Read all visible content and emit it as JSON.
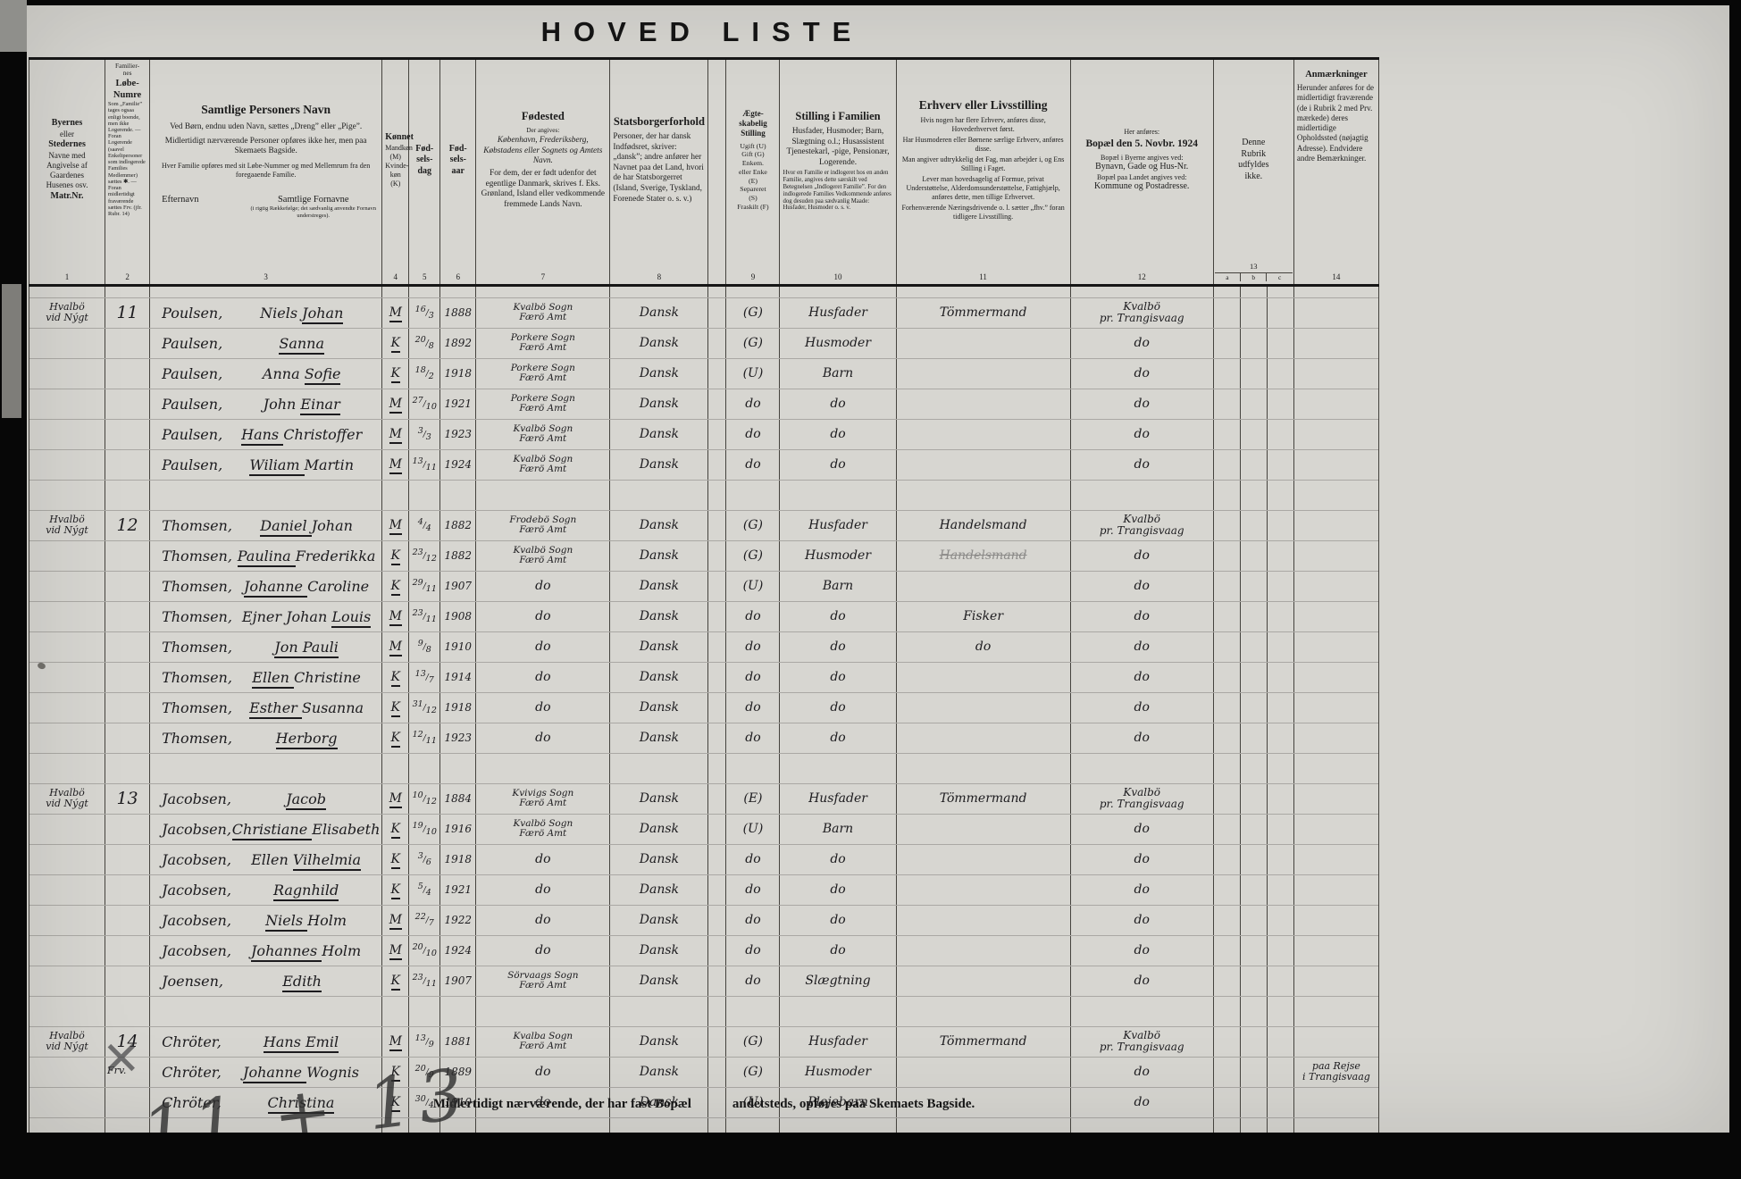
{
  "title": "HOVED  LISTE",
  "footer": {
    "left": "Midlertidigt nærværende, der har fast Bopæl",
    "right": "andetsteds, opføres paa Skemaets Bagside."
  },
  "pencil_note": "11 + 13",
  "table": {
    "headers": {
      "place": {
        "l1": "Byernes",
        "l2": "eller",
        "l3": "Stedernes",
        "l4": "Navne med\nAngivelse af\nGaardenes\nHusenes osv.",
        "l5": "Matr.Nr."
      },
      "family_no": {
        "top": "Familier-\nnes",
        "title": "Løbe-\nNumre",
        "small": "Som „Familie” tages ogsaa enligt boende, men ikke Logerende. — Foran Logerende (saavel Enkeltpersoner som indlogerede Families Medlemmer) sættes ✱. — Foran midlertidigt fraværende sættes Frv. (jfr. Rubr. 14)"
      },
      "names": {
        "title": "Samtlige Personers Navn",
        "p1": "Ved Børn, endnu uden Navn, sættes „Dreng” eller „Pige”.",
        "p2": "Midlertidigt nærværende Personer opføres ikke her, men paa Skemaets Bagside.",
        "p3": "Hver Familie opføres med sit Løbe-Nummer og med Mellemrum fra den foregaaende Familie.",
        "sub_left": "Efternavn",
        "sub_right": "Samtlige Fornavne",
        "sub_right_small": "(i rigtig Rækkefølge; det sædvanlig anvendte Fornavn understreges)."
      },
      "sex": {
        "title": "Kønnet",
        "lines": "Mandkøn\n(M)\nKvinde-\nkøn\n(K)"
      },
      "birth_day": "Fød-\nsels-\ndag",
      "birth_year": "Fød-\nsels-\naar",
      "birthplace": {
        "title": "Fødested",
        "small": "Der angives:",
        "p1": "København, Frederiksberg, Købstadens eller Sognets og Amtets Navn.",
        "p2": "For dem, der er født udenfor det egentlige Danmark, skrives f. Eks. Grønland, Island eller vedkommende fremmede Lands Navn."
      },
      "citizenship": {
        "title": "Statsborgerforhold",
        "p1": "Personer, der har dansk Indfødsret, skriver: „dansk”; andre anfører her Navnet paa det Land, hvori de har Statsborgerret (Island, Sverige, Tyskland, Forenede Stater o. s. v.)"
      },
      "marital": {
        "title": "Ægte-\nskabelig\nStilling",
        "lines": "Ugift (U)\nGift (G)\nEnkem.\neller Enke\n(E)\nSepareret\n(S)\nFraskilt (F)"
      },
      "family_position": {
        "title": "Stilling i Familien",
        "p1": "Husfader, Husmoder; Barn, Slægtning o.l.; Husassistent Tjenestekarl, -pige, Pensionær, Logerende.",
        "small": "Hvor en Familie er indlogeret hos en anden Familie, angives dette særskilt ved Betegnelsen „Indlogeret Familie”. For den indlogerede Families Vedkommende anføres dog desuden paa sædvanlig Maade: Husfader, Husmoder o. s. v."
      },
      "occupation": {
        "title": "Erhverv eller Livsstilling",
        "p": [
          "Hvis nogen har flere Erhverv, anføres disse, Hovederhvervet først.",
          "Har Husmoderen eller Børnene særlige Erhverv, anføres disse.",
          "Man angiver udtrykkelig det Fag, man arbejder i, og Ens Stilling i Faget.",
          "Lever man hovedsagelig af Formue, privat Understøttelse, Alderdomsunderstøttelse, Fattighjælp, anføres dette, men tillige Erhvervet.",
          "Forhenværende Næringsdrivende o. l. sætter „fhv.” foran tidligere Livsstilling."
        ]
      },
      "residence": {
        "small_top": "Her anføres:",
        "title": "Bopæl den 5. Novbr. 1924",
        "p1": "Bopæl i Byerne angives ved:",
        "p1b": "Bynavn, Gade og Hus-Nr.",
        "p2": "Bopæl paa Landet angives ved:",
        "p2b": "Kommune og Postadresse."
      },
      "unused": "Denne\nRubrik\nudfyldes\nikke.",
      "remarks": {
        "title": "Anmærkninger",
        "p1": "Herunder anføres for de midlertidigt fraværende (de i Rubrik 2 med Prv. mærkede) deres midlertidige Opholdssted (nøjagtig Adresse). Endvidere andre Bemærkninger."
      },
      "numbers": [
        "1",
        "2",
        "3",
        "4",
        "5",
        "6",
        "7",
        "8",
        "9",
        "10",
        "11",
        "12",
        "13",
        "14"
      ],
      "sub_abc": [
        "a",
        "b",
        "c"
      ]
    },
    "families": [
      {
        "location": [
          "Hvalbö",
          "vid Nýgt"
        ],
        "number": "11",
        "members": [
          {
            "surname": "Poulsen,",
            "given": [
              {
                "t": "Niels ",
                "u": false
              },
              {
                "t": "Johan",
                "u": true
              }
            ],
            "sex": "M",
            "day": "16/3",
            "year": "1888",
            "birthplace": [
              "Kvalbö Sogn",
              "Færö Amt"
            ],
            "citizenship": "Dansk",
            "marital": "(G)",
            "position": "Husfader",
            "occupation": "Tömmermand",
            "residence": [
              "Kvalbö",
              "pr. Trangisvaag"
            ],
            "remark": []
          },
          {
            "surname": "Paulsen,",
            "given": [
              {
                "t": "Sanna",
                "u": true
              }
            ],
            "sex": "K",
            "day": "20/8",
            "year": "1892",
            "birthplace": [
              "Porkere Sogn",
              "Færö Amt"
            ],
            "citizenship": "Dansk",
            "marital": "(G)",
            "position": "Husmoder",
            "occupation": "",
            "residence": [
              "do"
            ],
            "remark": []
          },
          {
            "surname": "Paulsen,",
            "given": [
              {
                "t": "Anna ",
                "u": false
              },
              {
                "t": "Sofie",
                "u": true
              }
            ],
            "sex": "K",
            "day": "18/2",
            "year": "1918",
            "birthplace": [
              "Porkere Sogn",
              "Færö Amt"
            ],
            "citizenship": "Dansk",
            "marital": "(U)",
            "position": "Barn",
            "occupation": "",
            "residence": [
              "do"
            ],
            "remark": []
          },
          {
            "surname": "Paulsen,",
            "given": [
              {
                "t": "John ",
                "u": false
              },
              {
                "t": "Einar",
                "u": true
              }
            ],
            "sex": "M",
            "day": "27/10",
            "year": "1921",
            "birthplace": [
              "Porkere Sogn",
              "Færö Amt"
            ],
            "citizenship": "Dansk",
            "marital": "do",
            "position": "do",
            "occupation": "",
            "residence": [
              "do"
            ],
            "remark": []
          },
          {
            "surname": "Paulsen,",
            "given": [
              {
                "t": "Hans ",
                "u": true
              },
              {
                "t": "Christoffer",
                "u": false
              }
            ],
            "sex": "M",
            "day": "3/3",
            "year": "1923",
            "birthplace": [
              "Kvalbö Sogn",
              "Færö Amt"
            ],
            "citizenship": "Dansk",
            "marital": "do",
            "position": "do",
            "occupation": "",
            "residence": [
              "do"
            ],
            "remark": []
          },
          {
            "surname": "Paulsen,",
            "given": [
              {
                "t": "Wiliam ",
                "u": true
              },
              {
                "t": "Martin",
                "u": false
              }
            ],
            "sex": "M",
            "day": "13/11",
            "year": "1924",
            "birthplace": [
              "Kvalbö Sogn",
              "Færö Amt"
            ],
            "citizenship": "Dansk",
            "marital": "do",
            "position": "do",
            "occupation": "",
            "residence": [
              "do"
            ],
            "remark": []
          }
        ]
      },
      {
        "location": [
          "Hvalbö",
          "vid Nýgt"
        ],
        "number": "12",
        "members": [
          {
            "surname": "Thomsen,",
            "given": [
              {
                "t": "Daniel ",
                "u": true
              },
              {
                "t": "Johan",
                "u": false
              }
            ],
            "sex": "M",
            "day": "4/4",
            "year": "1882",
            "birthplace": [
              "Frodebö Sogn",
              "Færö Amt"
            ],
            "citizenship": "Dansk",
            "marital": "(G)",
            "position": "Husfader",
            "occupation": "Handelsmand",
            "residence": [
              "Kvalbö",
              "pr. Trangisvaag"
            ],
            "remark": []
          },
          {
            "surname": "Thomsen,",
            "given": [
              {
                "t": "Paulina ",
                "u": true
              },
              {
                "t": "Frederikka",
                "u": false
              }
            ],
            "sex": "K",
            "day": "23/12",
            "year": "1882",
            "birthplace": [
              "Kvalbö Sogn",
              "Færö Amt"
            ],
            "citizenship": "Dansk",
            "marital": "(G)",
            "position": "Husmoder",
            "occupation": "Handelsmand",
            "occupation_struck": true,
            "residence": [
              "do"
            ],
            "remark": []
          },
          {
            "surname": "Thomsen,",
            "given": [
              {
                "t": "Johanne ",
                "u": true
              },
              {
                "t": "Caroline",
                "u": false
              }
            ],
            "sex": "K",
            "day": "29/11",
            "year": "1907",
            "birthplace": [
              "do"
            ],
            "citizenship": "Dansk",
            "marital": "(U)",
            "position": "Barn",
            "occupation": "",
            "residence": [
              "do"
            ],
            "remark": []
          },
          {
            "surname": "Thomsen,",
            "given": [
              {
                "t": "Ejner Johan ",
                "u": false
              },
              {
                "t": "Louis",
                "u": true
              }
            ],
            "sex": "M",
            "day": "23/11",
            "year": "1908",
            "birthplace": [
              "do"
            ],
            "citizenship": "Dansk",
            "marital": "do",
            "position": "do",
            "occupation": "Fisker",
            "residence": [
              "do"
            ],
            "remark": []
          },
          {
            "surname": "Thomsen,",
            "given": [
              {
                "t": "Jon Pauli",
                "u": true
              }
            ],
            "sex": "M",
            "day": "9/8",
            "year": "1910",
            "birthplace": [
              "do"
            ],
            "citizenship": "Dansk",
            "marital": "do",
            "position": "do",
            "occupation": "do",
            "residence": [
              "do"
            ],
            "remark": []
          },
          {
            "surname": "Thomsen,",
            "given": [
              {
                "t": "Ellen ",
                "u": true
              },
              {
                "t": "Christine",
                "u": false
              }
            ],
            "sex": "K",
            "day": "13/7",
            "year": "1914",
            "birthplace": [
              "do"
            ],
            "citizenship": "Dansk",
            "marital": "do",
            "position": "do",
            "occupation": "",
            "residence": [
              "do"
            ],
            "remark": []
          },
          {
            "surname": "Thomsen,",
            "given": [
              {
                "t": "Esther ",
                "u": true
              },
              {
                "t": "Susanna",
                "u": false
              }
            ],
            "sex": "K",
            "day": "31/12",
            "year": "1918",
            "birthplace": [
              "do"
            ],
            "citizenship": "Dansk",
            "marital": "do",
            "position": "do",
            "occupation": "",
            "residence": [
              "do"
            ],
            "remark": []
          },
          {
            "surname": "Thomsen,",
            "given": [
              {
                "t": "Herborg",
                "u": true
              }
            ],
            "sex": "K",
            "day": "12/11",
            "year": "1923",
            "birthplace": [
              "do"
            ],
            "citizenship": "Dansk",
            "marital": "do",
            "position": "do",
            "occupation": "",
            "residence": [
              "do"
            ],
            "remark": []
          }
        ]
      },
      {
        "location": [
          "Hvalbö",
          "vid Nýgt"
        ],
        "number": "13",
        "members": [
          {
            "surname": "Jacobsen,",
            "given": [
              {
                "t": "Jacob",
                "u": true
              }
            ],
            "sex": "M",
            "day": "10/12",
            "year": "1884",
            "birthplace": [
              "Kvivigs Sogn",
              "Færö Amt"
            ],
            "citizenship": "Dansk",
            "marital": "(E)",
            "position": "Husfader",
            "occupation": "Tömmermand",
            "residence": [
              "Kvalbö",
              "pr. Trangisvaag"
            ],
            "remark": []
          },
          {
            "surname": "Jacobsen,",
            "given": [
              {
                "t": "Christiane ",
                "u": true
              },
              {
                "t": "Elisabeth",
                "u": false
              }
            ],
            "sex": "K",
            "day": "19/10",
            "year": "1916",
            "birthplace": [
              "Kvalbö Sogn",
              "Færö Amt"
            ],
            "citizenship": "Dansk",
            "marital": "(U)",
            "position": "Barn",
            "occupation": "",
            "residence": [
              "do"
            ],
            "remark": []
          },
          {
            "surname": "Jacobsen,",
            "given": [
              {
                "t": "Ellen ",
                "u": false
              },
              {
                "t": "Vilhelmia",
                "u": true
              }
            ],
            "sex": "K",
            "day": "3/6",
            "year": "1918",
            "birthplace": [
              "do"
            ],
            "citizenship": "Dansk",
            "marital": "do",
            "position": "do",
            "occupation": "",
            "residence": [
              "do"
            ],
            "remark": []
          },
          {
            "surname": "Jacobsen,",
            "given": [
              {
                "t": "Ragnhild",
                "u": true
              }
            ],
            "sex": "K",
            "day": "5/4",
            "year": "1921",
            "birthplace": [
              "do"
            ],
            "citizenship": "Dansk",
            "marital": "do",
            "position": "do",
            "occupation": "",
            "residence": [
              "do"
            ],
            "remark": []
          },
          {
            "surname": "Jacobsen,",
            "given": [
              {
                "t": "Niels ",
                "u": true
              },
              {
                "t": "Holm",
                "u": false
              }
            ],
            "sex": "M",
            "day": "22/7",
            "year": "1922",
            "birthplace": [
              "do"
            ],
            "citizenship": "Dansk",
            "marital": "do",
            "position": "do",
            "occupation": "",
            "residence": [
              "do"
            ],
            "remark": []
          },
          {
            "surname": "Jacobsen,",
            "given": [
              {
                "t": "Johannes ",
                "u": true
              },
              {
                "t": "Holm",
                "u": false
              }
            ],
            "sex": "M",
            "day": "20/10",
            "year": "1924",
            "birthplace": [
              "do"
            ],
            "citizenship": "Dansk",
            "marital": "do",
            "position": "do",
            "occupation": "",
            "residence": [
              "do"
            ],
            "remark": []
          },
          {
            "surname": "Joensen,",
            "given": [
              {
                "t": "Edith",
                "u": true
              }
            ],
            "sex": "K",
            "day": "23/11",
            "year": "1907",
            "birthplace": [
              "Sörvaags Sogn",
              "Færö Amt"
            ],
            "citizenship": "Dansk",
            "marital": "do",
            "position": "Slægtning",
            "occupation": "",
            "residence": [
              "do"
            ],
            "remark": []
          }
        ]
      },
      {
        "location": [
          "Hvalbö",
          "vid Nýgt"
        ],
        "number": "14",
        "xmark": "✕",
        "members": [
          {
            "surname": "Chröter,",
            "given": [
              {
                "t": "Hans Emil",
                "u": true
              }
            ],
            "sex": "M",
            "day": "13/9",
            "year": "1881",
            "birthplace": [
              "Kvalba Sogn",
              "Færö Amt"
            ],
            "citizenship": "Dansk",
            "marital": "(G)",
            "position": "Husfader",
            "occupation": "Tömmermand",
            "residence": [
              "Kvalbö",
              "pr. Trangisvaag"
            ],
            "remark": []
          },
          {
            "surname": "Chröter,",
            "given": [
              {
                "t": "Johanne ",
                "u": true
              },
              {
                "t": "Wognis",
                "u": false
              }
            ],
            "sex": "K",
            "day": "20/9",
            "year": "1889",
            "birthplace": [
              "do"
            ],
            "citizenship": "Dansk",
            "marital": "(G)",
            "position": "Husmoder",
            "occupation": "",
            "residence": [
              "do"
            ],
            "remark": [
              "paa Rejse",
              "i Trangisvaag"
            ],
            "mark": "Frv."
          },
          {
            "surname": "Chröter,",
            "given": [
              {
                "t": "Christina",
                "u": true
              }
            ],
            "sex": "K",
            "day": "30/4",
            "year": "1910",
            "birthplace": [
              "do"
            ],
            "citizenship": "Dansk",
            "marital": "(U)",
            "position": "Plejebarn",
            "occupation": "",
            "residence": [
              "do"
            ],
            "remark": []
          }
        ]
      }
    ]
  }
}
